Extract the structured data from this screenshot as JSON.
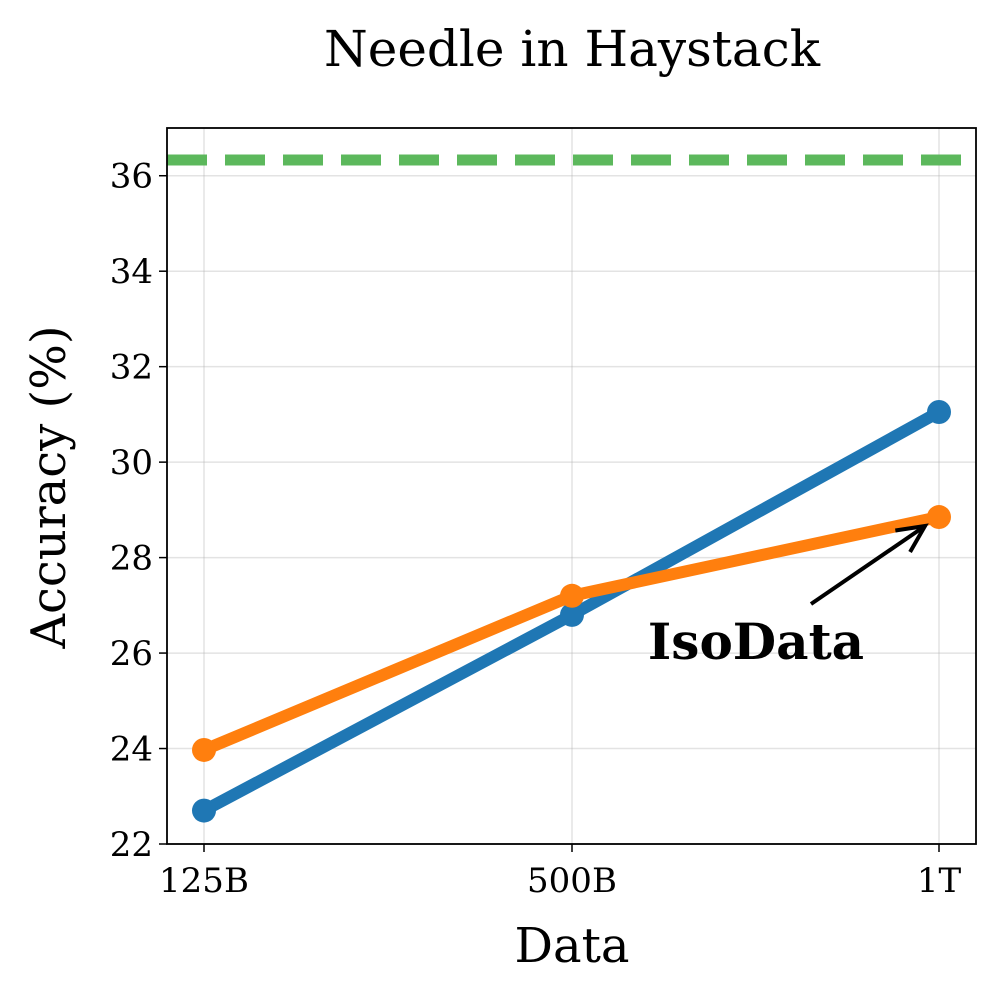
{
  "chart_data": {
    "type": "line",
    "title": "Needle in Haystack",
    "xlabel": "Data",
    "ylabel": "Accuracy (%)",
    "categories": [
      "125B",
      "500B",
      "1T"
    ],
    "ylim": [
      22,
      37
    ],
    "yticks": [
      22,
      24,
      26,
      28,
      30,
      32,
      34,
      36
    ],
    "grid": true,
    "series": [
      {
        "color": "#1f77b4",
        "values": [
          22.7,
          26.8,
          31.05
        ]
      },
      {
        "color": "#ff7f0e",
        "values": [
          23.97,
          27.2,
          28.85
        ]
      }
    ],
    "reference_line": {
      "value": 36.33,
      "color": "#5cb85c",
      "style": "dashed"
    },
    "annotations": [
      {
        "text": "IsoData",
        "target_category": "1T",
        "target_value": 28.85
      }
    ]
  }
}
